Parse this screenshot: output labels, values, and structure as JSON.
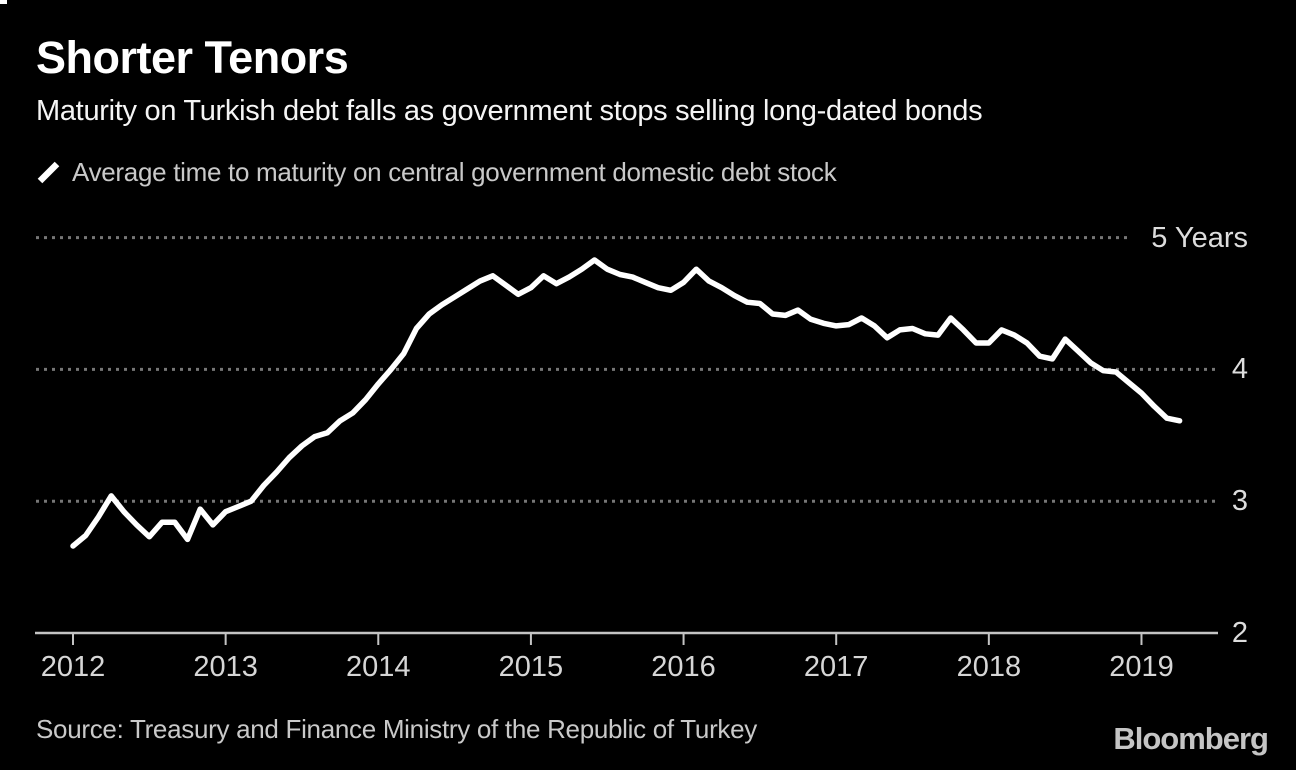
{
  "chart_data": {
    "type": "line",
    "title": "Shorter Tenors",
    "subtitle": "Maturity on Turkish debt falls as government stops selling long-dated bonds",
    "series": [
      {
        "name": "Average time to maturity on central government domestic debt stock",
        "frequency": "monthly",
        "x_start": "2012-01",
        "x_end": "2019-04",
        "values": [
          2.66,
          2.74,
          2.88,
          3.04,
          2.92,
          2.82,
          2.73,
          2.84,
          2.84,
          2.71,
          2.94,
          2.82,
          2.92,
          2.96,
          3.0,
          3.12,
          3.22,
          3.33,
          3.42,
          3.49,
          3.52,
          3.61,
          3.67,
          3.77,
          3.89,
          4.0,
          4.12,
          4.31,
          4.42,
          4.49,
          4.55,
          4.61,
          4.67,
          4.71,
          4.64,
          4.57,
          4.62,
          4.71,
          4.65,
          4.7,
          4.76,
          4.83,
          4.76,
          4.72,
          4.7,
          4.66,
          4.62,
          4.6,
          4.66,
          4.76,
          4.67,
          4.62,
          4.56,
          4.51,
          4.5,
          4.42,
          4.41,
          4.45,
          4.38,
          4.35,
          4.33,
          4.34,
          4.39,
          4.33,
          4.24,
          4.3,
          4.31,
          4.27,
          4.26,
          4.39,
          4.3,
          4.2,
          4.2,
          4.3,
          4.26,
          4.2,
          4.1,
          4.08,
          4.23,
          4.14,
          4.05,
          3.99,
          3.98,
          3.9,
          3.82,
          3.72,
          3.63,
          3.61
        ]
      }
    ],
    "xticks": [
      "2012",
      "2013",
      "2014",
      "2015",
      "2016",
      "2017",
      "2018",
      "2019"
    ],
    "yticks": [
      {
        "value": 5,
        "label": "5 Years"
      },
      {
        "value": 4,
        "label": "4"
      },
      {
        "value": 3,
        "label": "3"
      },
      {
        "value": 2,
        "label": "2"
      }
    ],
    "ylim": [
      2,
      5.2
    ],
    "unit": "Years",
    "grid": "horizontal-dotted",
    "legend_position": "top-left"
  },
  "source": {
    "label": "Source: Treasury and Finance Ministry of the Republic of Turkey"
  },
  "branding": {
    "logo": "Bloomberg"
  },
  "colors": {
    "background": "#000000",
    "line": "#ffffff",
    "grid": "#767676",
    "axis": "#c4c4c4",
    "title": "#ffffff",
    "subtitle": "#f5f5f5",
    "legend_text": "#c9c9c9",
    "tick_label": "#dddddd",
    "source_text": "#c9c9c9",
    "logo_text": "#c5c5c5"
  }
}
